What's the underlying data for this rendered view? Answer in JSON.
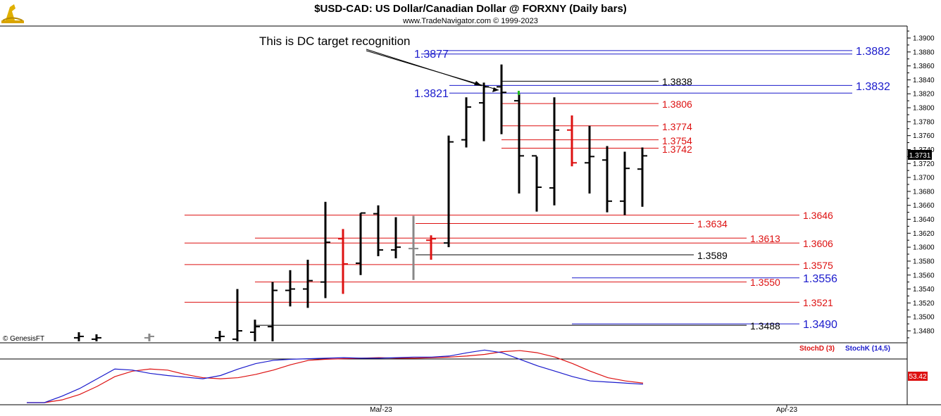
{
  "header": {
    "title": "$USD-CAD:  US Dollar/Canadian Dollar @ FORXNY  (Daily bars)",
    "subtitle": "www.TradeNavigator.com © 1999-2023"
  },
  "footer": {
    "credit": "© GenesisFT"
  },
  "annotation": {
    "text": "This is DC target recognition"
  },
  "colors": {
    "black": "#000000",
    "red": "#dd1111",
    "blue": "#1a1acc",
    "gray": "#888888",
    "green": "#22bb22"
  },
  "chart_data": [
    {
      "type": "ohlc",
      "y_axis": {
        "range": [
          1.3465,
          1.392
        ],
        "ticks": [
          "1.3480",
          "1.3500",
          "1.3520",
          "1.3540",
          "1.3560",
          "1.3580",
          "1.3600",
          "1.3620",
          "1.3640",
          "1.3660",
          "1.3680",
          "1.3700",
          "1.3720",
          "1.3740",
          "1.3760",
          "1.3780",
          "1.3800",
          "1.3820",
          "1.3840",
          "1.3860",
          "1.3880",
          "1.3900"
        ]
      },
      "x_axis": {
        "labels": [
          "Mar-23",
          "Apr-23"
        ]
      },
      "last_price": "1.3731",
      "bars": [
        {
          "h": 1.3478,
          "l": 1.3465,
          "o": 1.347,
          "c": 1.3472,
          "color": "black"
        },
        {
          "h": 1.3475,
          "l": 1.3465,
          "o": 1.3468,
          "c": 1.347,
          "color": "black"
        },
        {
          "h": 1.3476,
          "l": 1.3465,
          "o": 1.347,
          "c": 1.3472,
          "color": "gray"
        },
        {
          "h": 1.348,
          "l": 1.3465,
          "o": 1.347,
          "c": 1.3472,
          "color": "black"
        },
        {
          "h": 1.354,
          "l": 1.3465,
          "o": 1.3468,
          "c": 1.348,
          "color": "black"
        },
        {
          "h": 1.3496,
          "l": 1.3465,
          "o": 1.3478,
          "c": 1.3486,
          "color": "black"
        },
        {
          "h": 1.355,
          "l": 1.3465,
          "o": 1.3486,
          "c": 1.3538,
          "color": "black"
        },
        {
          "h": 1.3567,
          "l": 1.3515,
          "o": 1.3538,
          "c": 1.354,
          "color": "black"
        },
        {
          "h": 1.3582,
          "l": 1.3513,
          "o": 1.354,
          "c": 1.3552,
          "color": "black"
        },
        {
          "h": 1.3665,
          "l": 1.3527,
          "o": 1.355,
          "c": 1.3607,
          "color": "black"
        },
        {
          "h": 1.3626,
          "l": 1.3533,
          "o": 1.3612,
          "c": 1.3576,
          "color": "red"
        },
        {
          "h": 1.3649,
          "l": 1.356,
          "o": 1.3577,
          "c": 1.3649,
          "color": "black"
        },
        {
          "h": 1.366,
          "l": 1.3587,
          "o": 1.3648,
          "c": 1.3596,
          "color": "black"
        },
        {
          "h": 1.3643,
          "l": 1.3584,
          "o": 1.3596,
          "c": 1.36,
          "color": "black"
        },
        {
          "h": 1.3645,
          "l": 1.3553,
          "o": 1.3598,
          "c": 1.3598,
          "color": "gray"
        },
        {
          "h": 1.3617,
          "l": 1.3582,
          "o": 1.361,
          "c": 1.3612,
          "color": "red"
        },
        {
          "h": 1.376,
          "l": 1.36,
          "o": 1.3606,
          "c": 1.3751,
          "color": "black"
        },
        {
          "h": 1.3815,
          "l": 1.3743,
          "o": 1.3754,
          "c": 1.3801,
          "color": "black"
        },
        {
          "h": 1.3836,
          "l": 1.3752,
          "o": 1.3807,
          "c": 1.383,
          "color": "black"
        },
        {
          "h": 1.3862,
          "l": 1.3762,
          "o": 1.383,
          "c": 1.3822,
          "color": "black"
        },
        {
          "h": 1.382,
          "l": 1.3677,
          "o": 1.381,
          "c": 1.3731,
          "color": "black"
        },
        {
          "h": 1.373,
          "l": 1.3651,
          "o": 1.3731,
          "c": 1.3686,
          "color": "black"
        },
        {
          "h": 1.3815,
          "l": 1.366,
          "o": 1.3685,
          "c": 1.3768,
          "color": "black"
        },
        {
          "h": 1.3789,
          "l": 1.3716,
          "o": 1.3768,
          "c": 1.3721,
          "color": "red"
        },
        {
          "h": 1.3774,
          "l": 1.3677,
          "o": 1.3721,
          "c": 1.373,
          "color": "black"
        },
        {
          "h": 1.3745,
          "l": 1.365,
          "o": 1.3725,
          "c": 1.3666,
          "color": "black"
        },
        {
          "h": 1.3737,
          "l": 1.3646,
          "o": 1.3666,
          "c": 1.3713,
          "color": "black"
        },
        {
          "h": 1.3743,
          "l": 1.3658,
          "o": 1.3712,
          "c": 1.3731,
          "color": "black"
        }
      ],
      "levels": [
        {
          "label": "1.3882",
          "value": 1.3882,
          "color": "blue"
        },
        {
          "label": "1.3877",
          "value": 1.3877,
          "color": "blue"
        },
        {
          "label": "1.3838",
          "value": 1.3838,
          "color": "black"
        },
        {
          "label": "1.3832",
          "value": 1.3832,
          "color": "blue"
        },
        {
          "label": "1.3821",
          "value": 1.3821,
          "color": "blue"
        },
        {
          "label": "1.3806",
          "value": 1.3806,
          "color": "red"
        },
        {
          "label": "1.3774",
          "value": 1.3774,
          "color": "red"
        },
        {
          "label": "1.3754",
          "value": 1.3754,
          "color": "red"
        },
        {
          "label": "1.3742",
          "value": 1.3742,
          "color": "red"
        },
        {
          "label": "1.3646",
          "value": 1.3646,
          "color": "red"
        },
        {
          "label": "1.3634",
          "value": 1.3634,
          "color": "red"
        },
        {
          "label": "1.3613",
          "value": 1.3613,
          "color": "red"
        },
        {
          "label": "1.3606",
          "value": 1.3606,
          "color": "red"
        },
        {
          "label": "1.3589",
          "value": 1.3589,
          "color": "black"
        },
        {
          "label": "1.3575",
          "value": 1.3575,
          "color": "red"
        },
        {
          "label": "1.3556",
          "value": 1.3556,
          "color": "blue"
        },
        {
          "label": "1.3550",
          "value": 1.355,
          "color": "red"
        },
        {
          "label": "1.3521",
          "value": 1.3521,
          "color": "red"
        },
        {
          "label": "1.3490",
          "value": 1.349,
          "color": "blue"
        },
        {
          "label": "1.3488",
          "value": 1.3488,
          "color": "black"
        }
      ]
    },
    {
      "type": "line",
      "indicator": true,
      "series": [
        {
          "name": "StochD (3)",
          "color": "red",
          "values": [
            0,
            0,
            5,
            15,
            30,
            48,
            58,
            62,
            60,
            52,
            46,
            44,
            46,
            52,
            60,
            70,
            78,
            80,
            81,
            82,
            83,
            82,
            82,
            83,
            84,
            86,
            89,
            94,
            96,
            92,
            84,
            72,
            58,
            46,
            40,
            36
          ]
        },
        {
          "name": "StochK (14,5)",
          "color": "blue",
          "values": [
            0,
            0,
            12,
            26,
            44,
            62,
            60,
            54,
            50,
            47,
            44,
            50,
            62,
            72,
            78,
            80,
            81,
            82,
            83,
            82,
            82,
            83,
            84,
            84,
            86,
            92,
            97,
            92,
            80,
            68,
            58,
            48,
            40,
            38,
            36,
            34
          ]
        }
      ],
      "last_value": "53.42"
    }
  ]
}
